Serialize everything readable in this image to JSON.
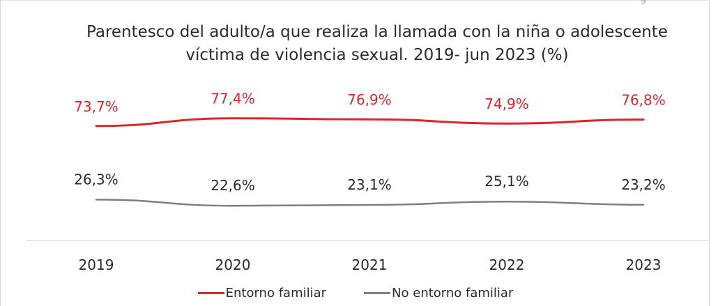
{
  "header_fragment": "g",
  "chart_data": {
    "type": "line",
    "title": "Parentesco del adulto/a que realiza la llamada con la niña o adolescente víctima de violencia sexual. 2019- jun 2023 (%)",
    "title_lines": [
      "Parentesco del adulto/a que realiza la llamada con la niña o adolescente",
      "víctima de violencia sexual. 2019- jun 2023 (%)"
    ],
    "categories": [
      "2019",
      "2020",
      "2021",
      "2022",
      "2023"
    ],
    "series": [
      {
        "name": "Entorno familiar",
        "color": "#d9262c",
        "values": [
          73.7,
          77.4,
          76.9,
          74.9,
          76.8
        ],
        "labels": [
          "73,7%",
          "77,4%",
          "76,9%",
          "74,9%",
          "76,8%"
        ]
      },
      {
        "name": "No entorno familiar",
        "color": "#7f7f7f",
        "values": [
          26.3,
          22.6,
          23.1,
          25.1,
          23.2
        ],
        "labels": [
          "26,3%",
          "22,6%",
          "23,1%",
          "25,1%",
          "23,2%"
        ]
      }
    ],
    "ylim": [
      0,
      100
    ],
    "grid": false,
    "legend_position": "bottom"
  }
}
